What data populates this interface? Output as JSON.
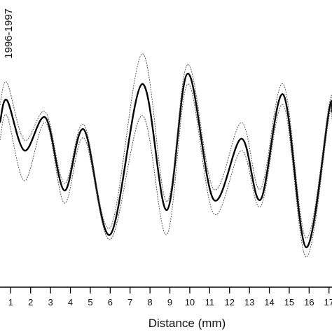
{
  "chart_data": {
    "type": "line",
    "y_label": "1996-1997",
    "x_label": "Distance (mm)",
    "x": [
      0.46,
      0.81,
      1.69,
      2.75,
      3.7,
      4.68,
      6.0,
      7.6,
      8.84,
      9.9,
      11.2,
      12.6,
      13.56,
      14.7,
      15.85,
      17.0,
      17.15
    ],
    "series": [
      {
        "color": "#000000",
        "style": "solid",
        "values": [
          235,
          267,
          195,
          242,
          138,
          225,
          75,
          290,
          110,
          305,
          125,
          212,
          125,
          275,
          57,
          252,
          250
        ]
      },
      {
        "color": "#555555",
        "style": "dotted",
        "values": [
          260,
          292,
          210,
          250,
          148,
          232,
          85,
          333,
          122,
          318,
          140,
          235,
          140,
          290,
          70,
          260,
          260
        ]
      },
      {
        "color": "#555555",
        "style": "dotted",
        "values": [
          210,
          245,
          152,
          235,
          120,
          213,
          68,
          245,
          75,
          290,
          105,
          195,
          115,
          260,
          43,
          242,
          240
        ]
      }
    ],
    "xlim": [
      0.46,
      17.15
    ],
    "ylim": [
      0,
      410
    ],
    "xticks": [
      1,
      2,
      3,
      4,
      5,
      6,
      7,
      8,
      9,
      10,
      11,
      12,
      13,
      14,
      15,
      16,
      17
    ]
  }
}
